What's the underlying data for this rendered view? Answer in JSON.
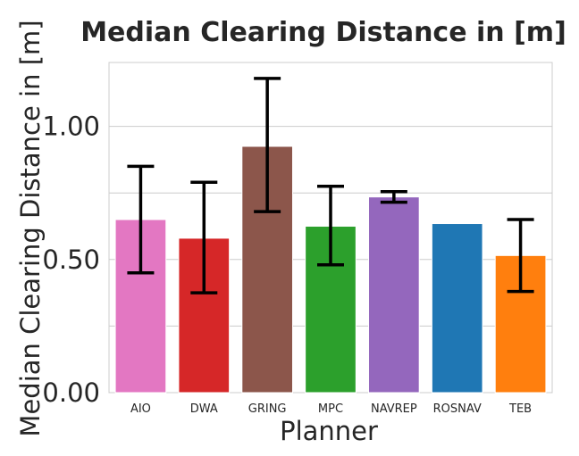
{
  "chart_data": {
    "type": "bar",
    "title": "Median Clearing Distance in [m]",
    "xlabel": "Planner",
    "ylabel": "Median Clearing Distance in [m]",
    "categories": [
      "AIO",
      "DWA",
      "GRING",
      "MPC",
      "NAVREP",
      "ROSNAV",
      "TEB"
    ],
    "values": [
      0.65,
      0.58,
      0.925,
      0.625,
      0.735,
      0.635,
      0.515
    ],
    "error_low": [
      0.45,
      0.375,
      0.68,
      0.48,
      0.715,
      null,
      0.38
    ],
    "error_high": [
      0.85,
      0.79,
      1.18,
      0.775,
      0.755,
      null,
      0.65
    ],
    "colors": [
      "#e377c2",
      "#d62728",
      "#8c564b",
      "#2ca02c",
      "#9467bd",
      "#1f77b4",
      "#ff7f0e"
    ],
    "ylim": [
      0,
      1.24
    ],
    "yticks": [
      0.0,
      0.5,
      1.0
    ],
    "ytick_labels": [
      "0.00",
      "0.50",
      "1.00"
    ],
    "minor_gridlines": [
      0.25,
      0.75
    ],
    "grid": true
  }
}
